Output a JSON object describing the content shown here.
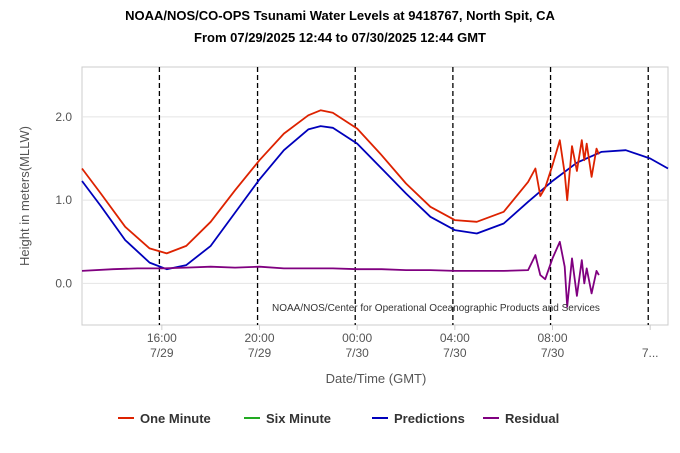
{
  "chart_data": {
    "type": "line",
    "title": "NOAA/NOS/CO-OPS Tsunami Water Levels at 9418767, North Spit, CA",
    "subtitle": "From 07/29/2025 12:44 to 07/30/2025 12:44 GMT",
    "xlabel": "Date/Time (GMT)",
    "ylabel": "Height in meters(MLLW)",
    "xlim_hours": [
      12.73,
      36.73
    ],
    "ylim": [
      -0.5,
      2.6
    ],
    "yticks": [
      0.0,
      1.0,
      2.0
    ],
    "ytick_labels": [
      "0.0",
      "1.0",
      "2.0"
    ],
    "xticks": [
      {
        "t": 16,
        "time": "16:00",
        "date": "7/29"
      },
      {
        "t": 20,
        "time": "20:00",
        "date": "7/29"
      },
      {
        "t": 24,
        "time": "00:00",
        "date": "7/30"
      },
      {
        "t": 28,
        "time": "04:00",
        "date": "7/30"
      },
      {
        "t": 32,
        "time": "08:00",
        "date": "7/30"
      },
      {
        "t": 36,
        "time": "",
        "date": "7..."
      }
    ],
    "vlines_hours": [
      15.9,
      19.92,
      23.92,
      27.92,
      31.92,
      35.92
    ],
    "credit": "NOAA/NOS/Center for Operational Oceanographic Products and Services",
    "legend": [
      "One Minute",
      "Six Minute",
      "Predictions",
      "Residual"
    ],
    "colors": {
      "One Minute": "#dd2200",
      "Six Minute": "#22aa22",
      "Predictions": "#0000bb",
      "Residual": "#800080"
    },
    "series": [
      {
        "name": "Predictions",
        "x": [
          12.73,
          13.5,
          14.5,
          15.5,
          16.2,
          17,
          18,
          19,
          20,
          21,
          22,
          22.5,
          23,
          24,
          25,
          26,
          27,
          28,
          28.9,
          30,
          31,
          32,
          33,
          34,
          35,
          36,
          36.73
        ],
        "y": [
          1.23,
          0.93,
          0.52,
          0.25,
          0.17,
          0.22,
          0.45,
          0.85,
          1.25,
          1.6,
          1.85,
          1.89,
          1.87,
          1.68,
          1.38,
          1.08,
          0.8,
          0.64,
          0.6,
          0.72,
          0.98,
          1.23,
          1.45,
          1.58,
          1.6,
          1.5,
          1.38
        ]
      },
      {
        "name": "One Minute",
        "x": [
          12.73,
          13.5,
          14.5,
          15.5,
          16.2,
          17,
          18,
          19,
          20,
          21,
          22,
          22.5,
          23,
          24,
          25,
          26,
          27,
          28,
          28.9,
          30,
          31,
          31.3,
          31.5,
          31.7,
          32,
          32.3,
          32.5,
          32.6,
          32.8,
          33.0,
          33.2,
          33.3,
          33.4,
          33.6,
          33.8,
          33.9
        ],
        "y": [
          1.38,
          1.08,
          0.68,
          0.42,
          0.36,
          0.45,
          0.74,
          1.12,
          1.48,
          1.8,
          2.02,
          2.08,
          2.05,
          1.86,
          1.54,
          1.2,
          0.92,
          0.76,
          0.74,
          0.86,
          1.22,
          1.38,
          1.05,
          1.15,
          1.42,
          1.72,
          1.32,
          1.0,
          1.65,
          1.35,
          1.72,
          1.48,
          1.68,
          1.28,
          1.62,
          1.55
        ]
      },
      {
        "name": "Residual",
        "x": [
          12.73,
          14,
          15,
          16,
          17,
          18,
          19,
          20,
          21,
          22,
          23,
          24,
          25,
          26,
          27,
          28,
          29,
          30,
          31,
          31.3,
          31.5,
          31.7,
          32,
          32.3,
          32.5,
          32.6,
          32.8,
          33.0,
          33.2,
          33.3,
          33.4,
          33.6,
          33.8,
          33.9
        ],
        "y": [
          0.15,
          0.17,
          0.18,
          0.18,
          0.19,
          0.2,
          0.19,
          0.2,
          0.18,
          0.18,
          0.18,
          0.17,
          0.17,
          0.16,
          0.16,
          0.15,
          0.15,
          0.15,
          0.16,
          0.34,
          0.1,
          0.05,
          0.3,
          0.5,
          0.2,
          -0.28,
          0.3,
          -0.15,
          0.28,
          0.0,
          0.18,
          -0.12,
          0.15,
          0.1
        ]
      },
      {
        "name": "Six Minute",
        "x": [],
        "y": []
      }
    ]
  }
}
